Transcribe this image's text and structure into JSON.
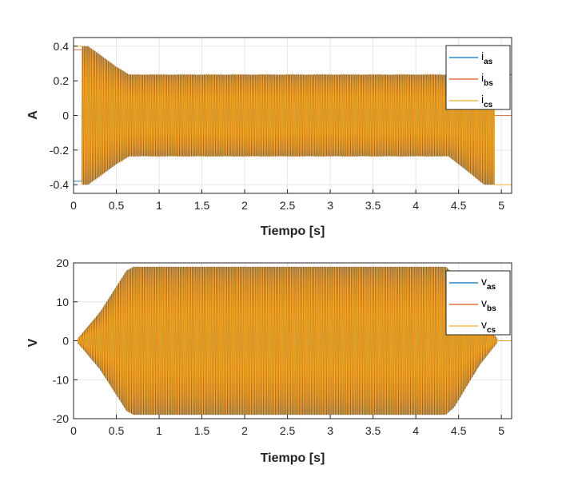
{
  "chart_data": [
    {
      "type": "line",
      "xlabel": "Tiempo [s]",
      "ylabel": "A",
      "xlim": [
        0,
        5.12
      ],
      "ylim": [
        -0.45,
        0.45
      ],
      "xticks": [
        0,
        0.5,
        1,
        1.5,
        2,
        2.5,
        3,
        3.5,
        4,
        4.5,
        5
      ],
      "xticklabels": [
        "0",
        "0.5",
        "1",
        "1.5",
        "2",
        "2.5",
        "3",
        "3.5",
        "4",
        "4.5",
        "5"
      ],
      "yticks": [
        -0.4,
        -0.2,
        0,
        0.2,
        0.4
      ],
      "yticklabels": [
        "-0.4",
        "-0.2",
        "0",
        "0.2",
        "0.4"
      ],
      "grid": true,
      "legend_position": "top-right",
      "series": [
        {
          "name": "i",
          "subscript": "as",
          "color": "#0072BD"
        },
        {
          "name": "i",
          "subscript": "bs",
          "color": "#D95319"
        },
        {
          "name": "i",
          "subscript": "cs",
          "color": "#EDB120"
        }
      ],
      "envelope": {
        "x": [
          0.1,
          0.17,
          0.5,
          0.65,
          4.38,
          4.55,
          4.8,
          4.92
        ],
        "amplitude": [
          0.4,
          0.4,
          0.28,
          0.235,
          0.235,
          0.3,
          0.4,
          0.4
        ]
      },
      "end_values": {
        "start": [
          -0.38,
          0.38,
          0.4
        ],
        "end": [
          0.235,
          0.0,
          -0.4
        ]
      }
    },
    {
      "type": "line",
      "xlabel": "Tiempo [s]",
      "ylabel": "V",
      "xlim": [
        0,
        5.12
      ],
      "ylim": [
        -20,
        20
      ],
      "xticks": [
        0,
        0.5,
        1,
        1.5,
        2,
        2.5,
        3,
        3.5,
        4,
        4.5,
        5
      ],
      "xticklabels": [
        "0",
        "0.5",
        "1",
        "1.5",
        "2",
        "2.5",
        "3",
        "3.5",
        "4",
        "4.5",
        "5"
      ],
      "yticks": [
        -20,
        -10,
        0,
        10,
        20
      ],
      "yticklabels": [
        "-20",
        "-10",
        "0",
        "10",
        "20"
      ],
      "grid": true,
      "legend_position": "top-right",
      "series": [
        {
          "name": "v",
          "subscript": "as",
          "color": "#0072BD"
        },
        {
          "name": "v",
          "subscript": "bs",
          "color": "#D95319"
        },
        {
          "name": "v",
          "subscript": "cs",
          "color": "#EDB120"
        }
      ],
      "envelope": {
        "x": [
          0.05,
          0.3,
          0.62,
          0.7,
          4.35,
          4.45,
          4.75,
          4.95
        ],
        "amplitude": [
          0.5,
          7,
          18,
          19,
          19,
          17,
          6,
          0.5
        ]
      }
    }
  ]
}
